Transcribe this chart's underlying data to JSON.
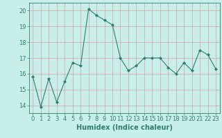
{
  "x": [
    0,
    1,
    2,
    3,
    4,
    5,
    6,
    7,
    8,
    9,
    10,
    11,
    12,
    13,
    14,
    15,
    16,
    17,
    18,
    19,
    20,
    21,
    22,
    23
  ],
  "y": [
    15.8,
    13.9,
    15.7,
    14.2,
    15.5,
    16.7,
    16.5,
    20.1,
    19.7,
    19.4,
    19.1,
    17.0,
    16.2,
    16.5,
    17.0,
    17.0,
    17.0,
    16.4,
    16.0,
    16.7,
    16.2,
    17.5,
    17.2,
    16.3
  ],
  "xlabel": "Humidex (Indice chaleur)",
  "ylim": [
    13.5,
    20.5
  ],
  "xlim": [
    -0.5,
    23.5
  ],
  "yticks": [
    14,
    15,
    16,
    17,
    18,
    19,
    20
  ],
  "xticks": [
    0,
    1,
    2,
    3,
    4,
    5,
    6,
    7,
    8,
    9,
    10,
    11,
    12,
    13,
    14,
    15,
    16,
    17,
    18,
    19,
    20,
    21,
    22,
    23
  ],
  "line_color": "#2e7d6e",
  "marker_color": "#2e7d6e",
  "bg_color": "#c8eeea",
  "grid_color": "#d4a0a0",
  "axis_color": "#2e7d6e",
  "tick_color": "#2e7d6e",
  "xlabel_color": "#2e7d6e",
  "xlabel_fontsize": 7,
  "tick_fontsize": 6,
  "ytick_fontsize": 6
}
